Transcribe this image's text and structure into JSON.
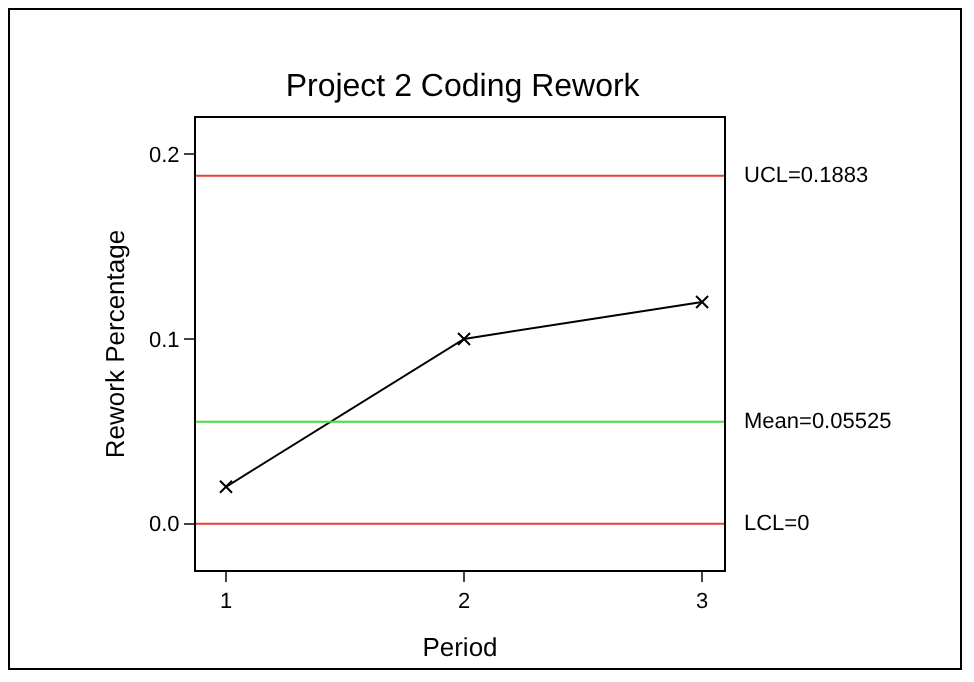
{
  "chart_data": {
    "type": "line",
    "title": "Project 2 Coding Rework",
    "xlabel": "Period",
    "ylabel": "Rework Percentage",
    "x": [
      1,
      2,
      3
    ],
    "series": [
      {
        "color": "#000000",
        "values": [
          0.02,
          0.1,
          0.12
        ]
      }
    ],
    "xlim": [
      0.874,
      3.092
    ],
    "xticks": [
      1,
      2,
      3
    ],
    "ylim": [
      -0.025,
      0.2195
    ],
    "yticks": [
      {
        "value": 0,
        "label": "0.0"
      },
      {
        "value": 0.1,
        "label": "0.1"
      },
      {
        "value": 0.2,
        "label": "0.2"
      }
    ],
    "ref_lines": [
      {
        "axis": "y",
        "value": 0.1883,
        "label": "UCL=0.1883",
        "color": "#e8403a"
      },
      {
        "axis": "y",
        "value": 0.05525,
        "label": "Mean=0.05525",
        "color": "#3fe03a"
      },
      {
        "axis": "y",
        "value": 0,
        "label": "LCL=0",
        "color": "#e8403a"
      }
    ],
    "marker": "cross",
    "line_style": "solid"
  }
}
